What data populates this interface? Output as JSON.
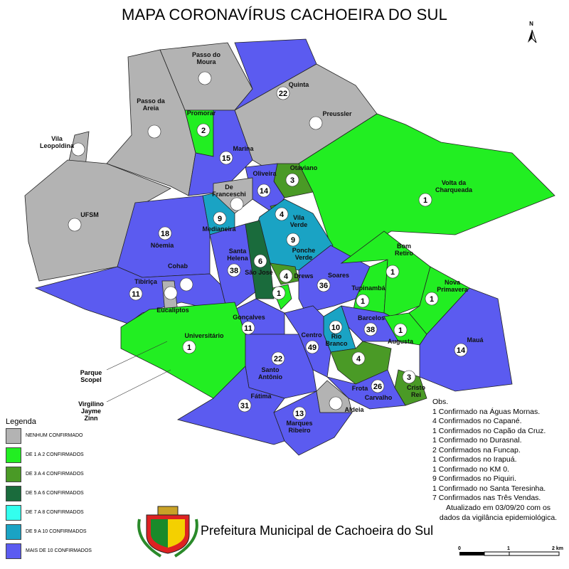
{
  "title": "MAPA CORONAVÍRUS CACHOEIRA DO SUL",
  "north": "N",
  "neighborhoods": [
    {
      "name": "Passo do\nMoura",
      "color": "#b3b3b3"
    },
    {
      "name": "Passo da\nAreia",
      "color": "#b3b3b3"
    },
    {
      "name": "Vila\nLeopoldina",
      "color": "#b3b3b3"
    },
    {
      "name": "UFSM",
      "color": "#b3b3b3"
    },
    {
      "name": "Quinta",
      "count": 22,
      "color": "#5b5bf0"
    },
    {
      "name": "Preussler",
      "color": "#b3b3b3"
    },
    {
      "name": "Promorar",
      "count": 2,
      "color": "#22ee22"
    },
    {
      "name": "Marina",
      "count": 15,
      "color": "#5b5bf0"
    },
    {
      "name": "Otaviano",
      "count": 3,
      "color": "#4a9a26"
    },
    {
      "name": "Oliveira",
      "count": 14,
      "color": "#5b5bf0"
    },
    {
      "name": "De\nFranceschi",
      "color": "#b3b3b3"
    },
    {
      "name": "Volta da\nCharqueada",
      "count": 1,
      "color": "#22ee22"
    },
    {
      "name": "Medianeira",
      "count": 9,
      "color": "#1aa3c4"
    },
    {
      "name": "Vila\nVerde",
      "count": 4,
      "color": "#4a9a26"
    },
    {
      "name": "Ponche\nVerde",
      "count": 9,
      "color": "#1aa3c4"
    },
    {
      "name": "Nôemia",
      "count": 18,
      "color": "#5b5bf0"
    },
    {
      "name": "Santa\nHelena",
      "count": 38,
      "color": "#5b5bf0"
    },
    {
      "name": "São José",
      "count": 6,
      "color": "#1a6b3c"
    },
    {
      "name": "Drews",
      "count": 4,
      "color": "#4a9a26"
    },
    {
      "count": 1,
      "color": "#22ee22"
    },
    {
      "name": "Cohab",
      "color": "#b3b3b3"
    },
    {
      "name": "Tibiriça",
      "count": 11,
      "color": "#5b5bf0"
    },
    {
      "name": "Eucaliptos",
      "color": "#b3b3b3"
    },
    {
      "name": "Soares",
      "count": 36,
      "color": "#5b5bf0"
    },
    {
      "name": "Tupinambá",
      "count": 1,
      "color": "#22ee22"
    },
    {
      "name": "Bom\nRetiro",
      "count": 1,
      "color": "#22ee22"
    },
    {
      "name": "Nova\nPrimavera",
      "count": 1,
      "color": "#22ee22"
    },
    {
      "name": "Barcelos",
      "count": 38,
      "color": "#5b5bf0"
    },
    {
      "name": "Rio\nBranco",
      "count": 10,
      "color": "#1aa3c4"
    },
    {
      "name": "Gonçalves",
      "count": 11,
      "color": "#5b5bf0"
    },
    {
      "name": "Universitário",
      "count": 1,
      "color": "#22ee22"
    },
    {
      "name": "Centro",
      "count": 49,
      "color": "#5b5bf0"
    },
    {
      "name": "Augusta",
      "count": 1,
      "color": "#22ee22"
    },
    {
      "name": "Mauá",
      "count": 14,
      "color": "#5b5bf0"
    },
    {
      "name": "Frota",
      "count": 4,
      "color": "#4a9a26"
    },
    {
      "name": "Santo\nAntônio",
      "count": 22,
      "color": "#5b5bf0"
    },
    {
      "name": "Cristo\nRei",
      "count": 3,
      "color": "#4a9a26"
    },
    {
      "name": "Carvalho",
      "count": 26,
      "color": "#5b5bf0"
    },
    {
      "name": "Fátima",
      "count": 31,
      "color": "#5b5bf0"
    },
    {
      "name": "Marques\nRibeiro",
      "count": 13,
      "color": "#5b5bf0"
    },
    {
      "name": "Aldeia",
      "color": "#b3b3b3"
    }
  ],
  "outside_labels": [
    "Parque\nScopel",
    "Virgilino\nJayme\nZinn"
  ],
  "legend": {
    "title": "Legenda",
    "items": [
      {
        "label": "NENHUM CONFIRMADO",
        "color": "#b3b3b3"
      },
      {
        "label": "DE 1 A 2 CONFIRMADOS",
        "color": "#22ee22"
      },
      {
        "label": "DE 3 A 4 CONFIRMADOS",
        "color": "#4a9a26"
      },
      {
        "label": "DE 5 A 6 CONFIRMADOS",
        "color": "#1a6b3c"
      },
      {
        "label": "DE 7 A 8 CONFIRMADOS",
        "color": "#33ffee"
      },
      {
        "label": "DE 9 A 10 CONFIRMADOS",
        "color": "#1aa3c4"
      },
      {
        "label": "MAIS DE 10 CONFIRMADOS",
        "color": "#5b5bf0"
      }
    ]
  },
  "observations": [
    "Obs.",
    "1 Confirmado na Águas Mornas.",
    "4 Confirmados no Capané.",
    "1 Confirmados no Capão da Cruz.",
    "1 Confirmado no Durasnal.",
    "2 Confirmados na Funcap.",
    "1 Confirmados no Irapuá.",
    "1 Confirmado no KM 0.",
    "9 Confirmados no Piquiri.",
    "1 Confirmado no Santa Teresinha.",
    "7 Confirmados nas Três Vendas."
  ],
  "updated": [
    "Atualizado em 03/09/20 com os",
    "dados da vigilância epidemiológica."
  ],
  "footer": "Prefeitura Municipal de Cachoeira do Sul",
  "scale": [
    "0",
    "1",
    "2 km"
  ]
}
